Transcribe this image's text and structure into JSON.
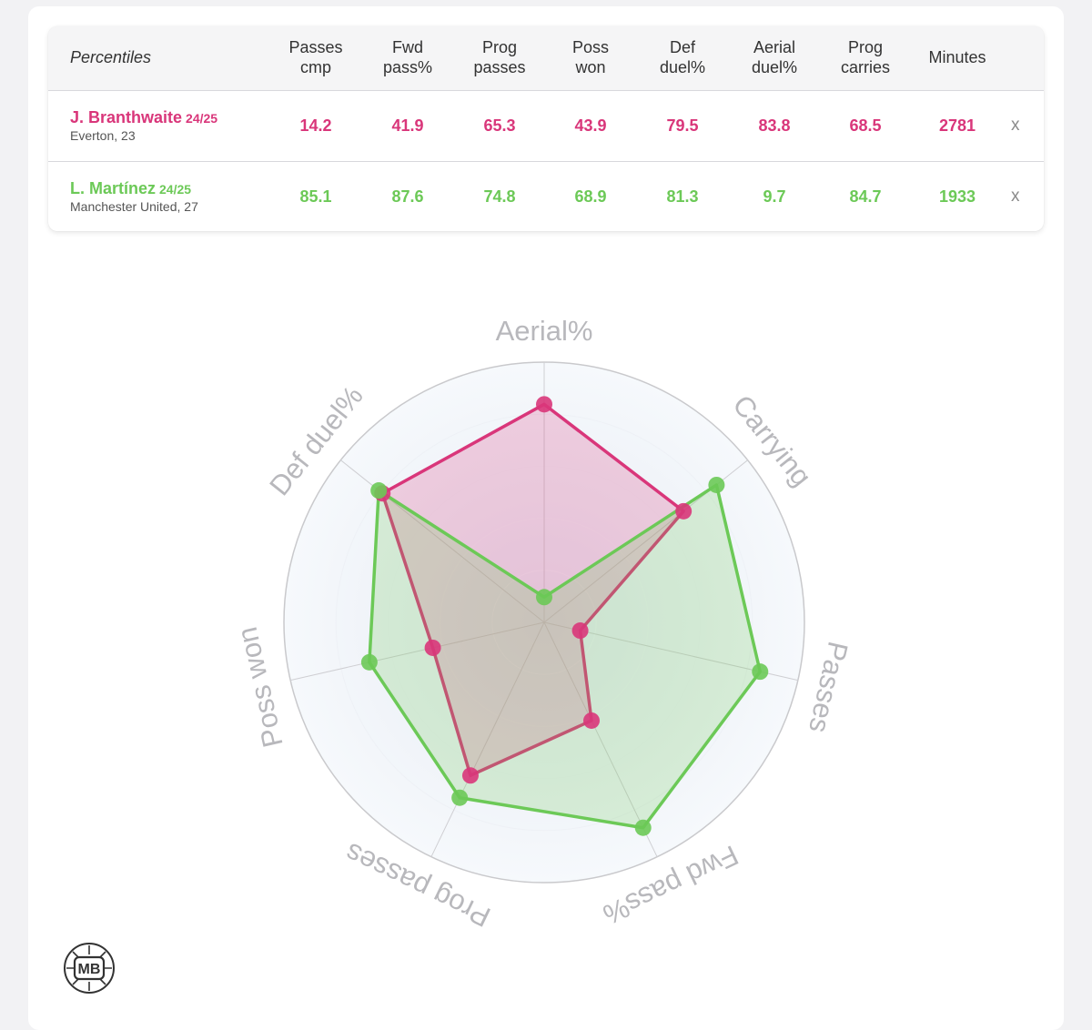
{
  "table": {
    "title": "Percentiles",
    "columns": [
      {
        "line1": "Passes",
        "line2": "cmp"
      },
      {
        "line1": "Fwd",
        "line2": "pass%"
      },
      {
        "line1": "Prog",
        "line2": "passes"
      },
      {
        "line1": "Poss",
        "line2": "won"
      },
      {
        "line1": "Def",
        "line2": "duel%"
      },
      {
        "line1": "Aerial",
        "line2": "duel%"
      },
      {
        "line1": "Prog",
        "line2": "carries"
      },
      {
        "line1": "Minutes",
        "line2": ""
      }
    ],
    "players": [
      {
        "name": "J. Branthwaite",
        "season": "24/25",
        "club": "Everton, 23",
        "color": "#d9367a",
        "values": [
          "14.2",
          "41.9",
          "65.3",
          "43.9",
          "79.5",
          "83.8",
          "68.5",
          "2781"
        ],
        "remove": "x"
      },
      {
        "name": "L. Martínez",
        "season": "24/25",
        "club": "Manchester United, 27",
        "color": "#6cc957",
        "values": [
          "85.1",
          "87.6",
          "74.8",
          "68.9",
          "81.3",
          "9.7",
          "84.7",
          "1933"
        ],
        "remove": "x"
      }
    ]
  },
  "chart_data": {
    "type": "radar",
    "axes": [
      "Aerial%",
      "Carrying",
      "Passes",
      "Fwd pass%",
      "Prog passes",
      "Poss won",
      "Def duel%"
    ],
    "range": [
      0,
      100
    ],
    "series": [
      {
        "name": "J. Branthwaite",
        "color": "#d9367a",
        "values": [
          83.8,
          68.5,
          14.2,
          41.9,
          65.3,
          43.9,
          79.5
        ]
      },
      {
        "name": "L. Martínez",
        "color": "#6cc957",
        "values": [
          9.7,
          84.7,
          85.1,
          87.6,
          74.8,
          68.9,
          81.3
        ]
      }
    ]
  },
  "logo": {
    "text": "MB"
  }
}
